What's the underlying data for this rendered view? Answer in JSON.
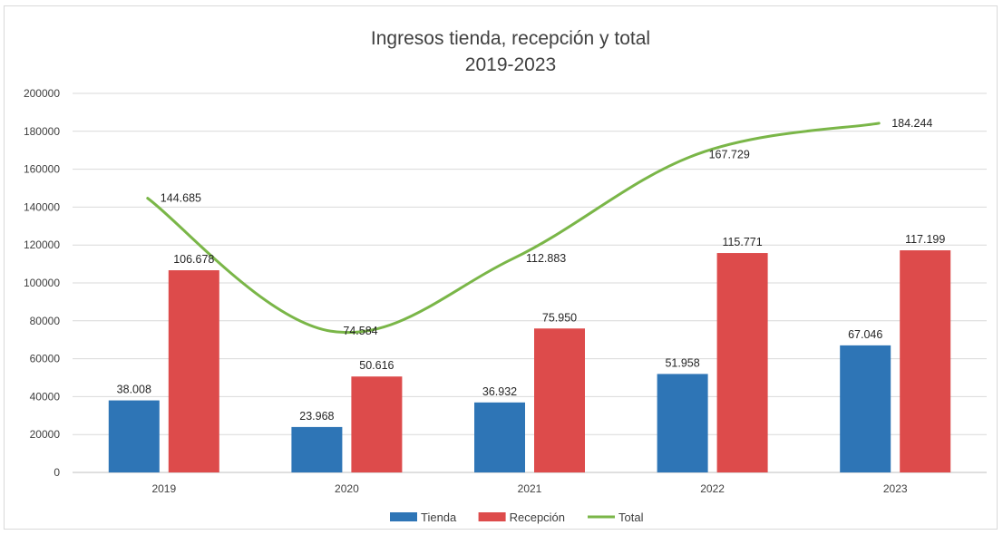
{
  "chart_data": {
    "type": "bar",
    "title": "Ingresos tienda, recepción y total",
    "subtitle": "2019-2023",
    "categories": [
      "2019",
      "2020",
      "2021",
      "2022",
      "2023"
    ],
    "series": [
      {
        "name": "Tienda",
        "type": "bar",
        "color": "#2e75b6",
        "values": [
          38008,
          23968,
          36932,
          51958,
          67046
        ],
        "labels": [
          "38.008",
          "23.968",
          "36.932",
          "51.958",
          "67.046"
        ]
      },
      {
        "name": "Recepción",
        "type": "bar",
        "color": "#dd4b4b",
        "values": [
          106678,
          50616,
          75950,
          115771,
          117199
        ],
        "labels": [
          "106.678",
          "50.616",
          "75.950",
          "115.771",
          "117.199"
        ]
      },
      {
        "name": "Total",
        "type": "line",
        "color": "#7ab648",
        "values": [
          144685,
          74584,
          112883,
          167729,
          184244
        ],
        "labels": [
          "144.685",
          "74.584",
          "112.883",
          "167.729",
          "184.244"
        ]
      }
    ],
    "y_ticks": [
      "0",
      "20000",
      "40000",
      "60000",
      "80000",
      "100000",
      "120000",
      "140000",
      "160000",
      "180000",
      "200000"
    ],
    "ylim": [
      0,
      200000
    ],
    "grid": true,
    "legend_position": "bottom"
  }
}
